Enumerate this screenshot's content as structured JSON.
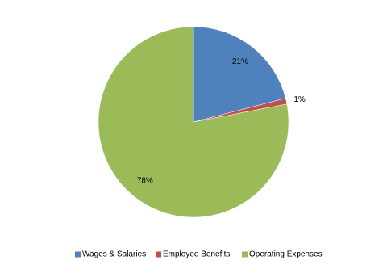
{
  "chart_data": {
    "type": "pie",
    "categories": [
      "Wages & Salaries",
      "Employee Benefits",
      "Operating Expenses"
    ],
    "values": [
      21,
      1,
      78
    ],
    "value_labels": [
      "21%",
      "1%",
      "78%"
    ],
    "colors": [
      "#4f81bd",
      "#c0504d",
      "#9bbb59"
    ],
    "legend": "bottom"
  }
}
